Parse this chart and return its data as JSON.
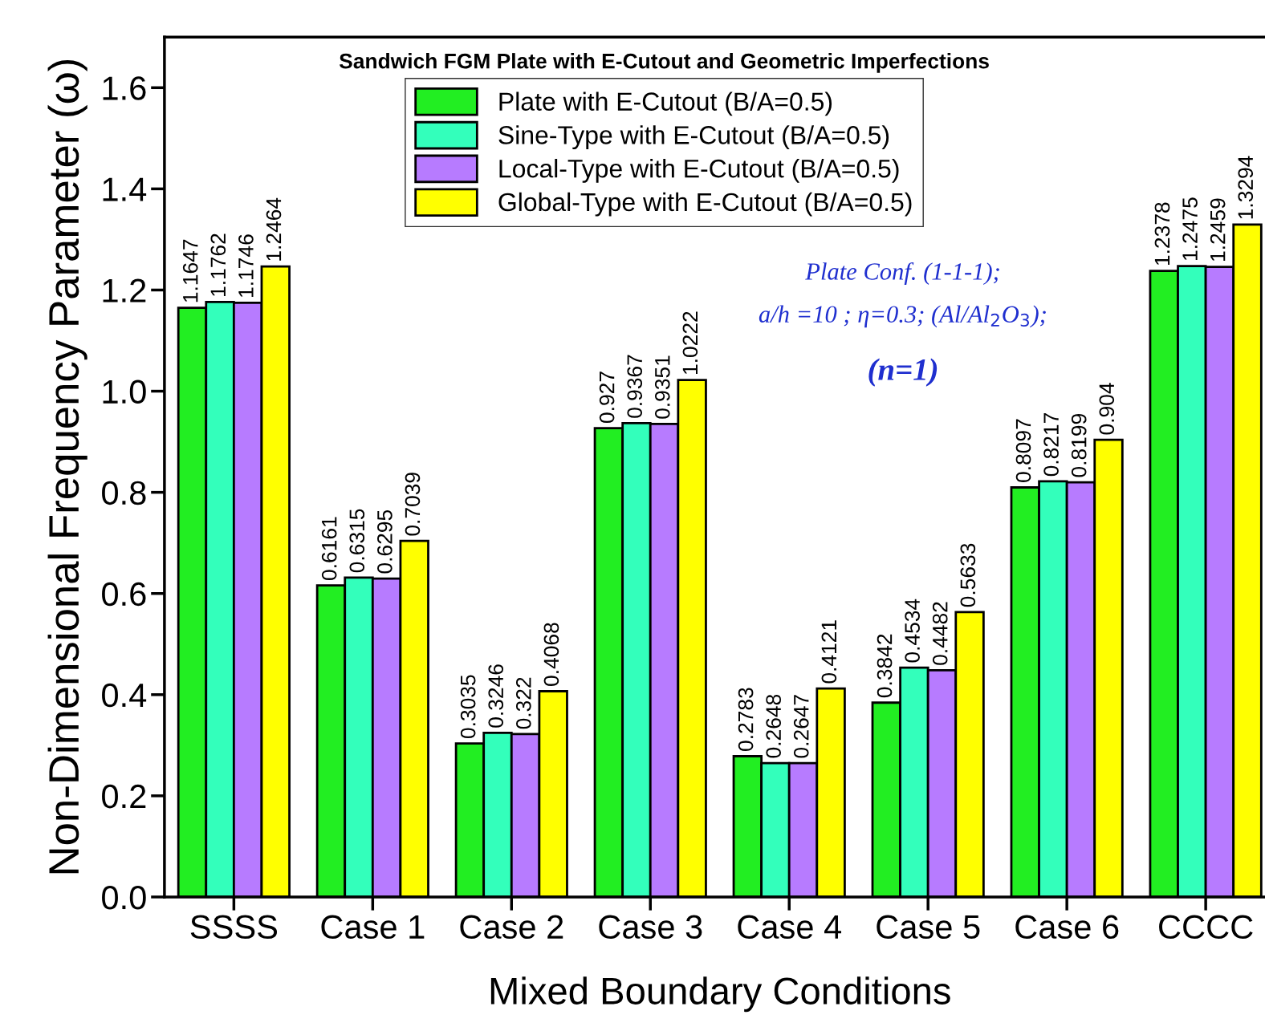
{
  "chart_data": {
    "type": "bar",
    "title": "Sandwich FGM Plate with E-Cutout and Geometric Imperfections",
    "xlabel": "Mixed Boundary Conditions",
    "ylabel": "Non-Dimensional Frequency Parameter (ω)",
    "categories": [
      "SSSS",
      "Case 1",
      "Case 2",
      "Case 3",
      "Case 4",
      "Case 5",
      "Case 6",
      "CCCC"
    ],
    "series": [
      {
        "name": "Plate with E-Cutout (B/A=0.5)",
        "color": "#22ee22",
        "values": [
          1.1647,
          0.6161,
          0.3035,
          0.927,
          0.2783,
          0.3842,
          0.8097,
          1.2378
        ]
      },
      {
        "name": "Sine-Type with E-Cutout (B/A=0.5)",
        "color": "#33ffbb",
        "values": [
          1.1762,
          0.6315,
          0.3246,
          0.9367,
          0.2648,
          0.4534,
          0.8217,
          1.2475
        ]
      },
      {
        "name": "Local-Type with E-Cutout (B/A=0.5)",
        "color": "#b77bff",
        "values": [
          1.1746,
          0.6295,
          0.322,
          0.9351,
          0.2647,
          0.4482,
          0.8199,
          1.2459
        ]
      },
      {
        "name": "Global-Type with E-Cutout (B/A=0.5)",
        "color": "#ffff00",
        "values": [
          1.2464,
          0.7039,
          0.4068,
          1.0222,
          0.4121,
          0.5633,
          0.904,
          1.3294
        ]
      }
    ],
    "ylim": [
      0,
      1.7
    ],
    "yticks": [
      {
        "value": 0,
        "label": "0.0"
      },
      {
        "value": 0.2,
        "label": "0.2"
      },
      {
        "value": 0.4,
        "label": "0.4"
      },
      {
        "value": 0.6,
        "label": "0.6"
      },
      {
        "value": 0.8,
        "label": "0.8"
      },
      {
        "value": 1.0,
        "label": "1.0"
      },
      {
        "value": 1.2,
        "label": "1.2"
      },
      {
        "value": 1.4,
        "label": "1.4"
      },
      {
        "value": 1.6,
        "label": "1.6"
      }
    ],
    "data_labels": true,
    "legend": "top",
    "grid": false,
    "annotations": [
      "Plate Conf. (1-1-1);",
      "a/h =10 ; η=0.3; (Al/Al$_{2}$O$_{3}$);",
      "(n=1)"
    ]
  }
}
